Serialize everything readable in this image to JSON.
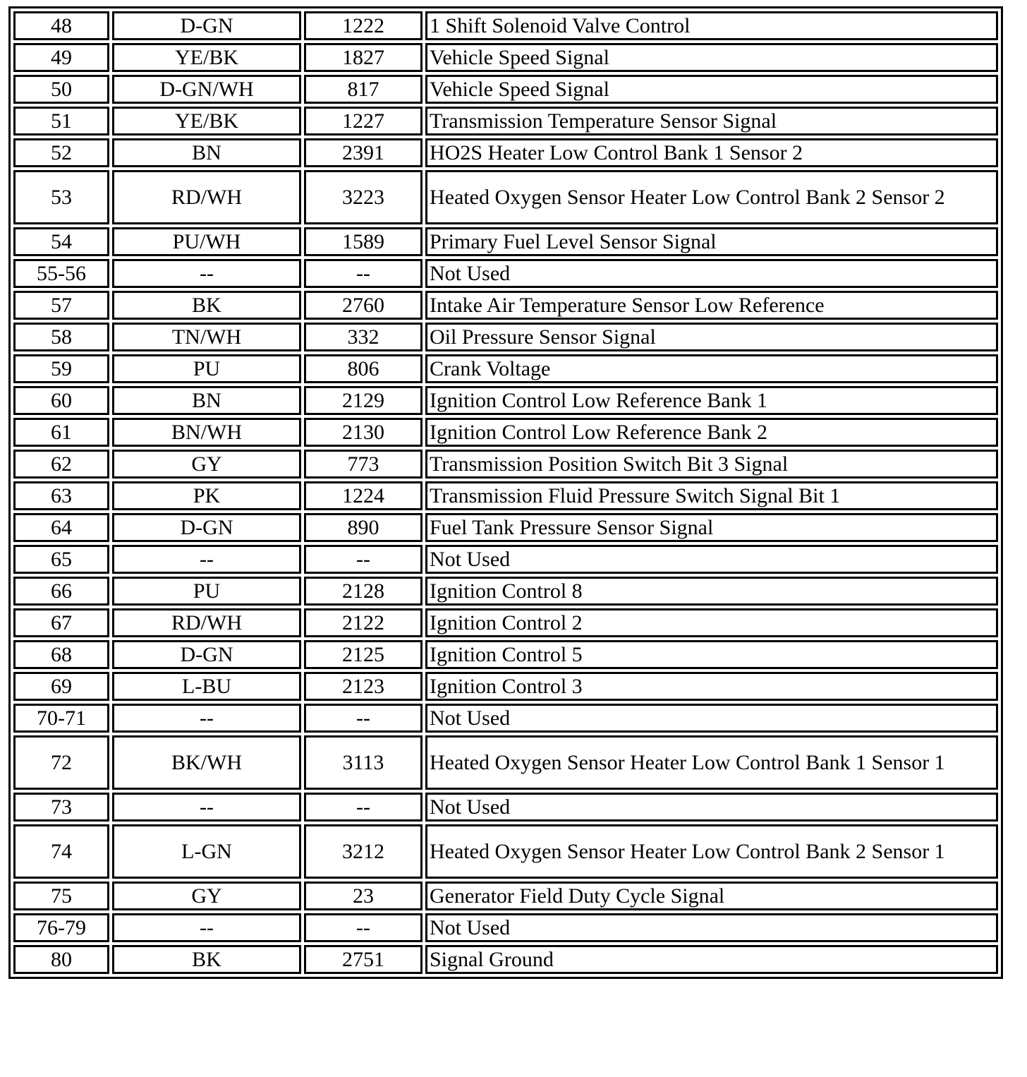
{
  "table": {
    "rows": [
      {
        "pin": "48",
        "color": "D-GN",
        "circuit": "1222",
        "description": "1 Shift Solenoid Valve Control"
      },
      {
        "pin": "49",
        "color": "YE/BK",
        "circuit": "1827",
        "description": "Vehicle Speed Signal"
      },
      {
        "pin": "50",
        "color": "D-GN/WH",
        "circuit": "817",
        "description": "Vehicle Speed Signal"
      },
      {
        "pin": "51",
        "color": "YE/BK",
        "circuit": "1227",
        "description": "Transmission Temperature Sensor Signal"
      },
      {
        "pin": "52",
        "color": "BN",
        "circuit": "2391",
        "description": "HO2S Heater Low Control Bank 1 Sensor 2"
      },
      {
        "pin": "53",
        "color": "RD/WH",
        "circuit": "3223",
        "description": "Heated Oxygen Sensor Heater Low Control Bank 2 Sensor 2"
      },
      {
        "pin": "54",
        "color": "PU/WH",
        "circuit": "1589",
        "description": "Primary Fuel Level Sensor Signal"
      },
      {
        "pin": "55-56",
        "color": "--",
        "circuit": "--",
        "description": "Not Used"
      },
      {
        "pin": "57",
        "color": "BK",
        "circuit": "2760",
        "description": "Intake Air Temperature Sensor Low Reference"
      },
      {
        "pin": "58",
        "color": "TN/WH",
        "circuit": "332",
        "description": "Oil Pressure Sensor Signal"
      },
      {
        "pin": "59",
        "color": "PU",
        "circuit": "806",
        "description": "Crank Voltage"
      },
      {
        "pin": "60",
        "color": "BN",
        "circuit": "2129",
        "description": "Ignition Control Low Reference Bank 1"
      },
      {
        "pin": "61",
        "color": "BN/WH",
        "circuit": "2130",
        "description": "Ignition Control Low Reference Bank 2"
      },
      {
        "pin": "62",
        "color": "GY",
        "circuit": "773",
        "description": "Transmission Position Switch Bit 3 Signal"
      },
      {
        "pin": "63",
        "color": "PK",
        "circuit": "1224",
        "description": "Transmission Fluid Pressure Switch Signal Bit 1"
      },
      {
        "pin": "64",
        "color": "D-GN",
        "circuit": "890",
        "description": "Fuel Tank Pressure Sensor Signal"
      },
      {
        "pin": "65",
        "color": "--",
        "circuit": "--",
        "description": "Not Used"
      },
      {
        "pin": "66",
        "color": "PU",
        "circuit": "2128",
        "description": "Ignition Control 8"
      },
      {
        "pin": "67",
        "color": "RD/WH",
        "circuit": "2122",
        "description": "Ignition Control 2"
      },
      {
        "pin": "68",
        "color": "D-GN",
        "circuit": "2125",
        "description": "Ignition Control 5"
      },
      {
        "pin": "69",
        "color": "L-BU",
        "circuit": "2123",
        "description": "Ignition Control 3"
      },
      {
        "pin": "70-71",
        "color": "--",
        "circuit": "--",
        "description": "Not Used"
      },
      {
        "pin": "72",
        "color": "BK/WH",
        "circuit": "3113",
        "description": "Heated Oxygen Sensor Heater Low Control Bank 1 Sensor 1"
      },
      {
        "pin": "73",
        "color": "--",
        "circuit": "--",
        "description": "Not Used"
      },
      {
        "pin": "74",
        "color": "L-GN",
        "circuit": "3212",
        "description": "Heated Oxygen Sensor Heater Low Control Bank 2 Sensor 1"
      },
      {
        "pin": "75",
        "color": "GY",
        "circuit": "23",
        "description": "Generator Field Duty Cycle Signal"
      },
      {
        "pin": "76-79",
        "color": "--",
        "circuit": "--",
        "description": "Not Used"
      },
      {
        "pin": "80",
        "color": "BK",
        "circuit": "2751",
        "description": "Signal Ground"
      }
    ]
  }
}
